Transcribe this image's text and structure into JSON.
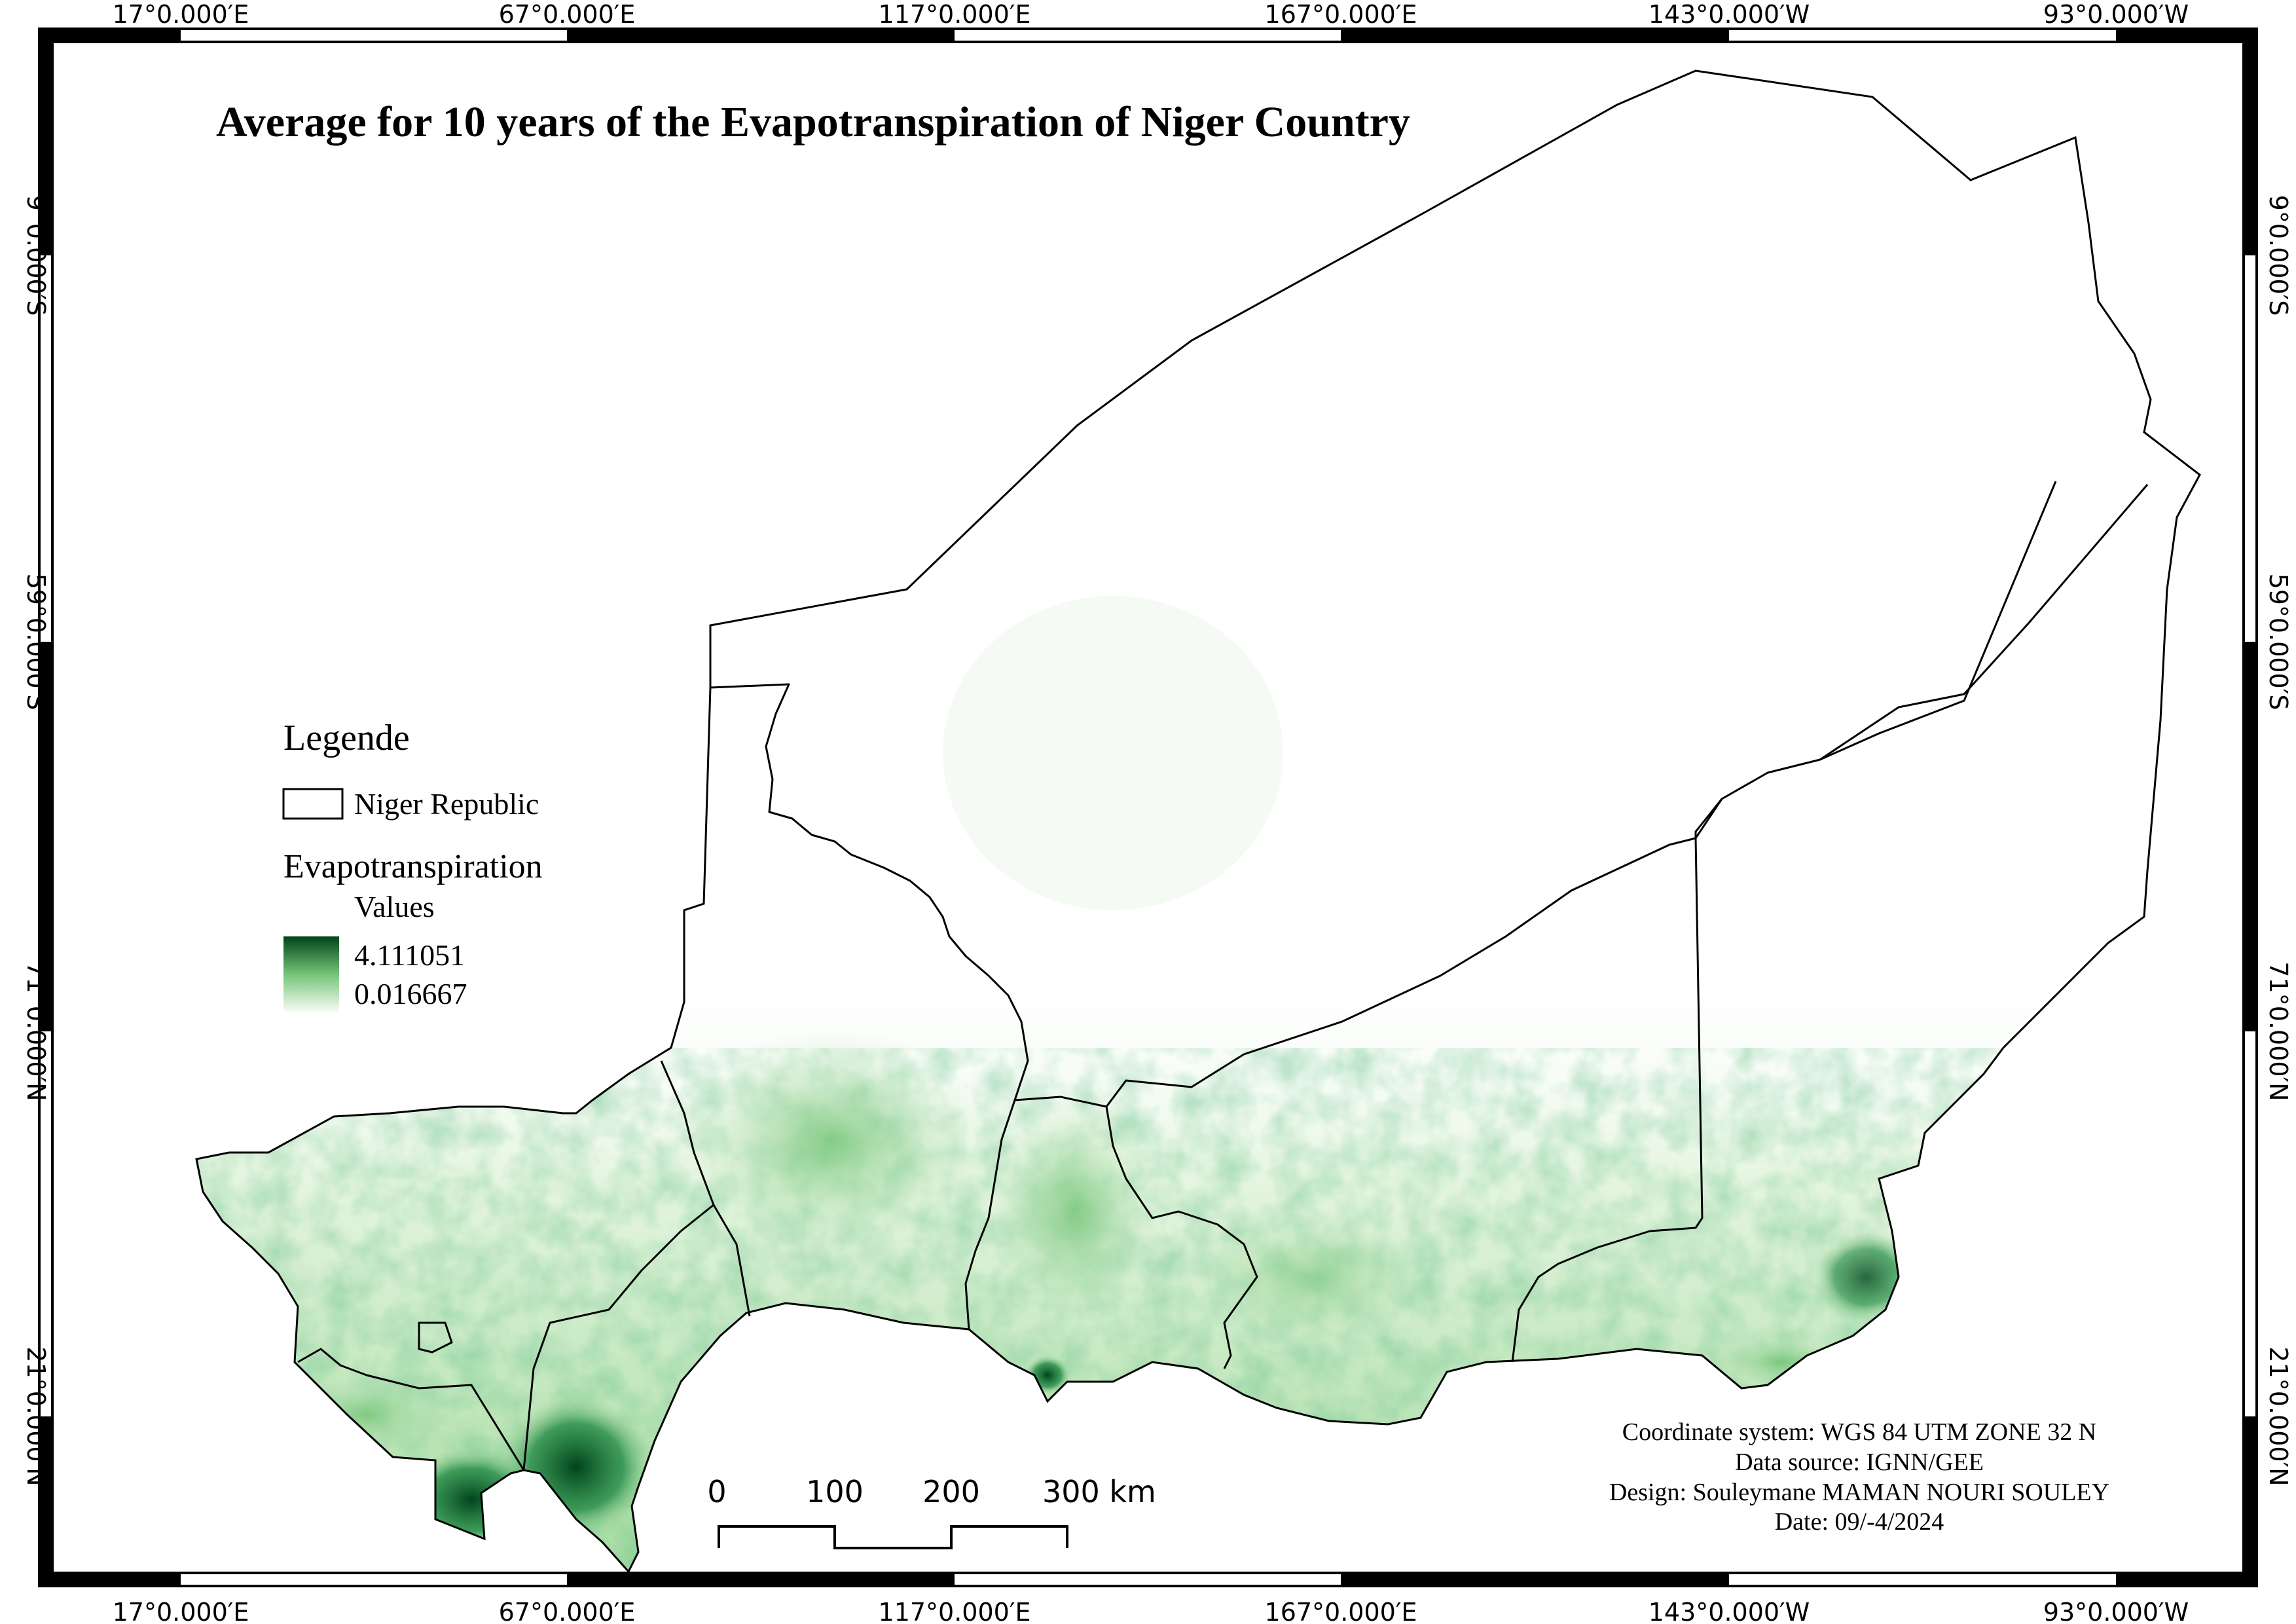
{
  "title": "Average for 10 years of the Evapotranspiration of Niger Country",
  "frame": {
    "top_labels": [
      "17°0.000′E",
      "67°0.000′E",
      "117°0.000′E",
      "167°0.000′E",
      "143°0.000′W",
      "93°0.000′W"
    ],
    "bottom_labels": [
      "17°0.000′E",
      "67°0.000′E",
      "117°0.000′E",
      "167°0.000′E",
      "143°0.000′W",
      "93°0.000′W"
    ],
    "left_labels": [
      "9°0.000′S",
      "59°0.000′S",
      "71°0.000′N",
      "21°0.000′N"
    ],
    "right_labels": [
      "9°0.000′S",
      "59°0.000′S",
      "71°0.000′N",
      "21°0.000′N"
    ]
  },
  "legend": {
    "heading": "Legende",
    "boundary_label": "Niger Republic",
    "raster_label": "Evapotranspiration",
    "values_label": "Values",
    "max_value": "4.111051",
    "min_value": "0.016667",
    "ramp_colors": [
      "#00441b",
      "#f7fcf5"
    ]
  },
  "scale_bar": {
    "labels": [
      "0",
      "100",
      "200",
      "300 km"
    ]
  },
  "credits": {
    "coordinate_system": "Coordinate system: WGS 84 UTM ZONE 32 N",
    "data_source": "Data source: IGNN/GEE",
    "design": "Design: Souleymane MAMAN NOURI SOULEY",
    "date": "Date: 09/-4/2024"
  }
}
